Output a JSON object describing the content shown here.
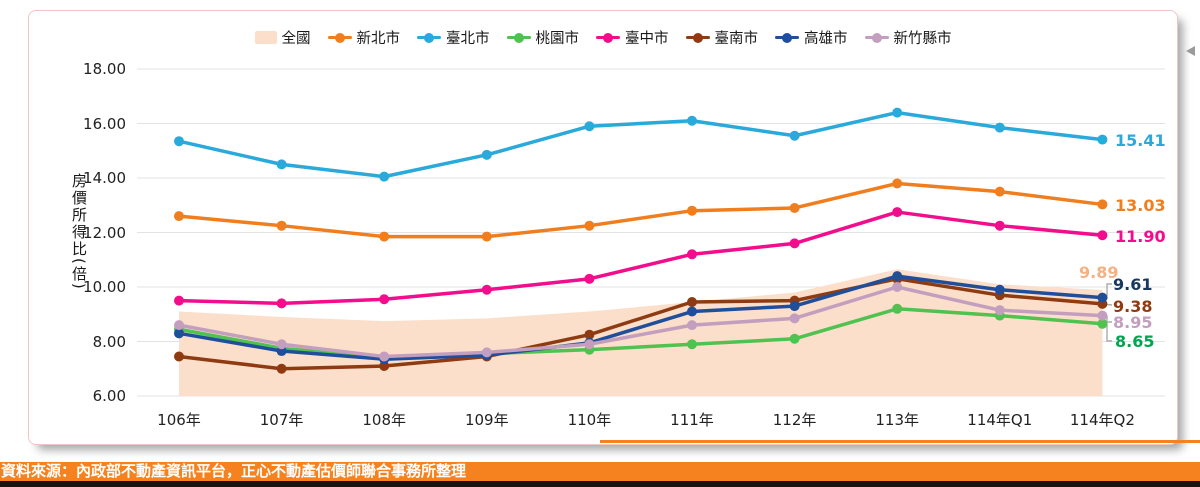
{
  "y_axis": {
    "title": "房價所得比(倍)",
    "ticks": [
      "18.00",
      "16.00",
      "14.00",
      "12.00",
      "10.00",
      "8.00",
      "6.00"
    ]
  },
  "chart_data": {
    "type": "line",
    "title": "",
    "xlabel": "",
    "ylabel": "房價所得比(倍)",
    "ylim": [
      6,
      18
    ],
    "y_tick_step": 2,
    "grid": true,
    "legend_position": "top",
    "categories": [
      "106年",
      "107年",
      "108年",
      "109年",
      "110年",
      "111年",
      "112年",
      "113年",
      "114年Q1",
      "114年Q2"
    ],
    "series": [
      {
        "name": "全國",
        "type": "area",
        "color": "#FBDFCB",
        "label_color": "#F4B183",
        "values": [
          9.1,
          8.9,
          8.75,
          8.85,
          9.1,
          9.45,
          9.8,
          10.65,
          10.1,
          9.89
        ],
        "end_label": "9.89"
      },
      {
        "name": "新北市",
        "type": "line",
        "color": "#F07E1E",
        "values": [
          12.6,
          12.25,
          11.85,
          11.85,
          12.25,
          12.8,
          12.9,
          13.8,
          13.5,
          13.03
        ],
        "end_label": "13.03"
      },
      {
        "name": "臺北市",
        "type": "line",
        "color": "#2AA9DB",
        "values": [
          15.35,
          14.5,
          14.05,
          14.85,
          15.9,
          16.1,
          15.55,
          16.4,
          15.85,
          15.41
        ],
        "end_label": "15.41"
      },
      {
        "name": "桃園市",
        "type": "line",
        "color": "#4FC24F",
        "label_color": "#00A650",
        "values": [
          8.45,
          7.75,
          7.4,
          7.55,
          7.7,
          7.9,
          8.1,
          9.2,
          8.95,
          8.65
        ],
        "end_label": "8.65"
      },
      {
        "name": "臺中市",
        "type": "line",
        "color": "#F20D8C",
        "values": [
          9.5,
          9.4,
          9.55,
          9.9,
          10.3,
          11.2,
          11.6,
          12.75,
          12.25,
          11.9
        ],
        "end_label": "11.90"
      },
      {
        "name": "臺南市",
        "type": "line",
        "color": "#8E3B12",
        "values": [
          7.45,
          7.0,
          7.1,
          7.45,
          8.25,
          9.45,
          9.5,
          10.3,
          9.7,
          9.38
        ],
        "end_label": "9.38"
      },
      {
        "name": "高雄市",
        "type": "line",
        "color": "#1F4E9B",
        "label_color": "#17375E",
        "values": [
          8.3,
          7.65,
          7.35,
          7.5,
          7.95,
          9.1,
          9.3,
          10.4,
          9.9,
          9.61
        ],
        "end_label": "9.61"
      },
      {
        "name": "新竹縣市",
        "type": "line",
        "color": "#C49EBE",
        "values": [
          8.6,
          7.9,
          7.45,
          7.6,
          7.9,
          8.6,
          8.85,
          10.0,
          9.15,
          8.95
        ],
        "end_label": "8.95"
      }
    ]
  },
  "source_bar": {
    "text": "資料來源：內政部不動產資訊平台，正心不動產估價師聯合事務所整理",
    "background": "#F5821E"
  }
}
